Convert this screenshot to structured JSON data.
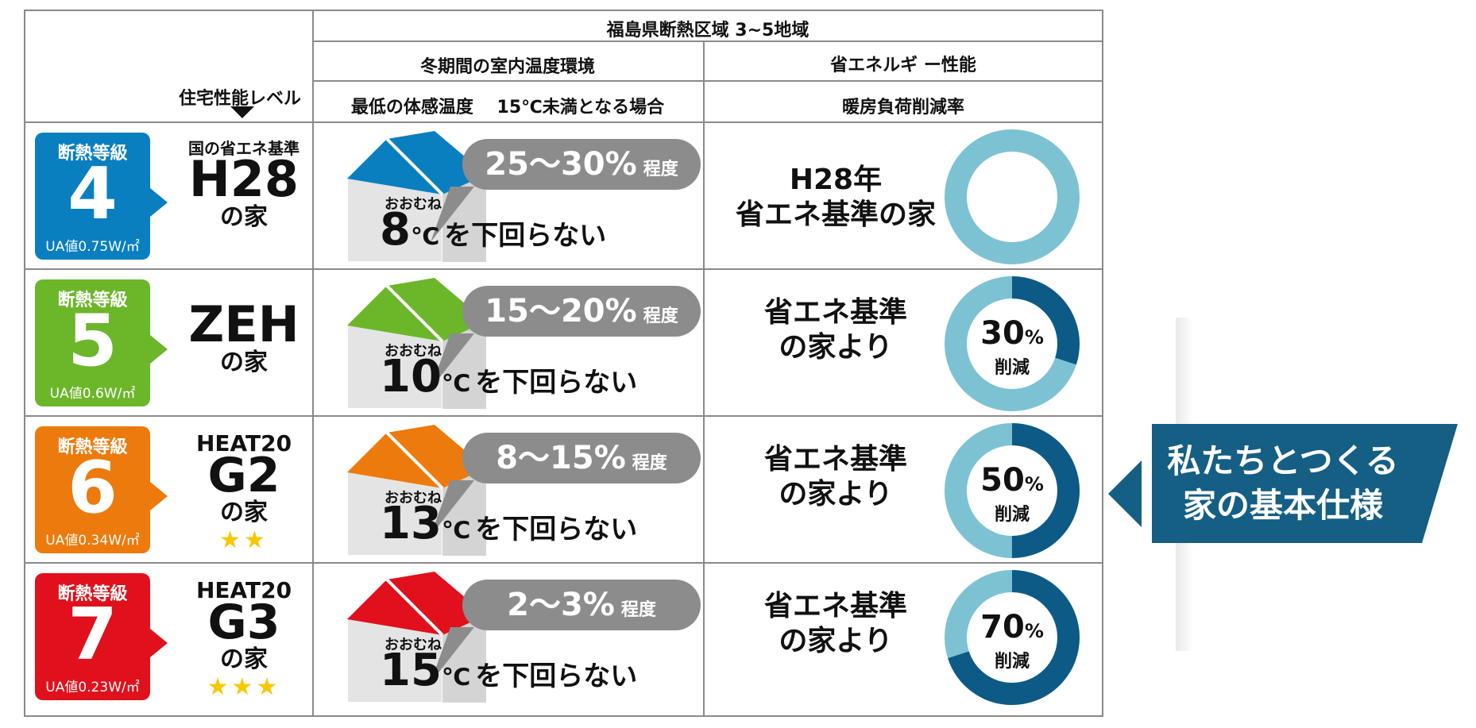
{
  "header": {
    "region": "福島県断熱区域 3~5地域",
    "col_env": "冬期間の室内温度環境",
    "col_energy": "省エネルギ ー性能",
    "sub_env": "最低の体感温度　 15℃未満となる場合",
    "sub_energy": "暖房負荷削減率",
    "level_label": "住宅性能レベル"
  },
  "rows": [
    {
      "grade_label": "断熱等級",
      "grade": "4",
      "ua": "UA値0.75W/㎡",
      "std_pre": "国の省エネ基準",
      "std_main": "H28",
      "std_post": "の家",
      "stars": "",
      "color": "#0a7fc0",
      "pct": "25～30%",
      "pct_suffix": "程度",
      "omune": "おおむね",
      "deg": "8",
      "c": "℃",
      "rest": "を下回らない",
      "savings_line1": "H28年",
      "savings_line2": "省エネ基準の家",
      "reduction": 0,
      "reduction_text": "",
      "reduction_unit": "",
      "reduction_label": ""
    },
    {
      "grade_label": "断熱等級",
      "grade": "5",
      "ua": "UA値0.6W/㎡",
      "std_pre": "",
      "std_main": "ZEH",
      "std_post": "の家",
      "stars": "",
      "color": "#6cb62a",
      "pct": "15～20%",
      "pct_suffix": "程度",
      "omune": "おおむね",
      "deg": "10",
      "c": "℃",
      "rest": "を下回らない",
      "savings_line1": "省エネ基準",
      "savings_line2": "の家より",
      "reduction": 0.3,
      "reduction_text": "30",
      "reduction_unit": "%",
      "reduction_label": "削減"
    },
    {
      "grade_label": "断熱等級",
      "grade": "6",
      "ua": "UA値0.34W/㎡",
      "std_pre": "HEAT20",
      "std_main": "G2",
      "std_post": "の家",
      "stars": "★★",
      "color": "#ed7a0c",
      "pct": "8～15%",
      "pct_suffix": "程度",
      "omune": "おおむね",
      "deg": "13",
      "c": "℃",
      "rest": "を下回らない",
      "savings_line1": "省エネ基準",
      "savings_line2": "の家より",
      "reduction": 0.5,
      "reduction_text": "50",
      "reduction_unit": "%",
      "reduction_label": "削減"
    },
    {
      "grade_label": "断熱等級",
      "grade": "7",
      "ua": "UA値0.23W/㎡",
      "std_pre": "HEAT20",
      "std_main": "G3",
      "std_post": "の家",
      "stars": "★★★",
      "color": "#e0101c",
      "pct": "2～3%",
      "pct_suffix": "程度",
      "omune": "おおむね",
      "deg": "15",
      "c": "℃",
      "rest": "を下回らない",
      "savings_line1": "省エネ基準",
      "savings_line2": "の家より",
      "reduction": 0.7,
      "reduction_text": "70",
      "reduction_unit": "%",
      "reduction_label": "削減"
    }
  ],
  "banner": {
    "line1": "私たちとつくる",
    "line2": "家の基本仕様",
    "color": "#155e84"
  },
  "colors": {
    "donut_light": "#7dc2d3",
    "donut_dark": "#0d5a86",
    "grid": "#8a8a8a",
    "bubble": "#8c8c8c"
  }
}
